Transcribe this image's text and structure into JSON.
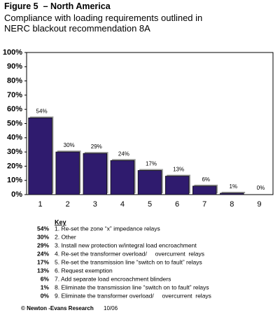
{
  "chart_data": {
    "type": "bar",
    "title": "Figure 5  – North America",
    "subtitle": "Compliance with loading requirements outlined in NERC blackout recommendation 8A",
    "categories": [
      "1",
      "2",
      "3",
      "4",
      "5",
      "6",
      "7",
      "8",
      "9"
    ],
    "values": [
      54,
      30,
      29,
      24,
      17,
      13,
      6,
      1,
      0
    ],
    "value_labels": [
      "54%",
      "30%",
      "29%",
      "24%",
      "17%",
      "13%",
      "6%",
      "1%",
      "0%"
    ],
    "color": "#2f1b6e",
    "ylim": [
      0,
      100
    ],
    "yticks": [
      {
        "value": 0,
        "label": "0%"
      },
      {
        "value": 10,
        "label": "10%"
      },
      {
        "value": 20,
        "label": "20%"
      },
      {
        "value": 30,
        "label": "30%"
      },
      {
        "value": 40,
        "label": "40%"
      },
      {
        "value": 50,
        "label": "50%"
      },
      {
        "value": 60,
        "label": "60%"
      },
      {
        "value": 70,
        "label": "70%"
      },
      {
        "value": 80,
        "label": "80%"
      },
      {
        "value": 90,
        "label": "90%"
      },
      {
        "value": 100,
        "label": "100%"
      }
    ],
    "grid": false
  },
  "key": {
    "title": "Key",
    "items": [
      "1. Re-set the zone “x” impedance relays",
      "2. Other",
      "3. Install new protection w/integral load encroachment",
      "4. Re-set the transformer overload/     overcurrent  relays",
      "5. Re-set the transmission line “switch on to fault” relays",
      "6. Request exemption",
      "7. Add separate load encroachment blinders",
      "8. Eliminate the transmission line “switch on to fault” relays",
      "9. Eliminate the transformer overload/     overcurrent  relays"
    ]
  },
  "footer": {
    "source": "© Newton -Evans Research",
    "date": "10/06"
  }
}
